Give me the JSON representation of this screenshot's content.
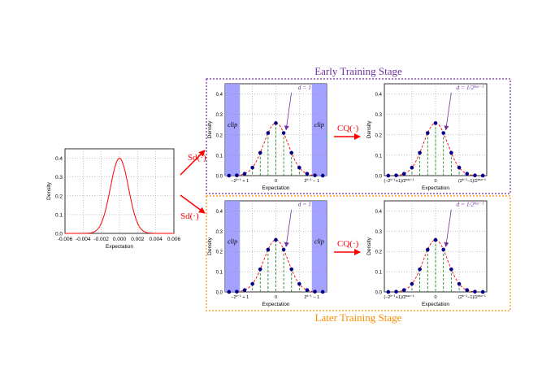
{
  "colors": {
    "early_frame": "#7030a0",
    "later_frame": "#ff8c00",
    "arrow": "#ff0000",
    "gaussian": "#ff0000",
    "clip_fill": "#9999ff",
    "dots": "#00008b",
    "dashes": "#228b22"
  },
  "stage_labels": {
    "early": "Early Training Stage",
    "later": "Later Training Stage"
  },
  "operators": {
    "sd": "Sd(·)",
    "cq": "CQ(·)"
  },
  "annotations": {
    "clip": "clip",
    "d_one": "d = 1",
    "d_frac": "d = 1/2",
    "d_frac_exp": "k_{sc}−1"
  },
  "small_plot": {
    "xlabel": "Expectation",
    "ylabel": "Density",
    "xticks": [
      "-0.006",
      "-0.004",
      "-0.002",
      "0.000",
      "0.002",
      "0.004",
      "0.006"
    ],
    "yticks": [
      "0.0",
      "0.1",
      "0.2",
      "0.3",
      "0.4"
    ]
  },
  "panels": {
    "xlabel": "Expectation",
    "ylabel": "Density",
    "yticks": [
      "0.0",
      "0.1",
      "0.2",
      "0.3",
      "0.4"
    ],
    "left_xticks": [
      "−2^{k−1} + 1",
      "0",
      "2^{k−1} − 1"
    ],
    "right_xticks": [
      "(−2^{k−1}+1)/2^{k_{sc}−1}",
      "0",
      "(2^{k−1}−1)/2^{k_{sc}−1}"
    ]
  },
  "chart_data": {
    "type": "line",
    "series": [
      {
        "x": [
          -0.006,
          -0.005,
          -0.004,
          -0.003,
          -0.002,
          -0.001,
          0,
          0.001,
          0.002,
          0.003,
          0.004,
          0.005,
          0.006
        ],
        "values": [
          0.0,
          0.0,
          0.0,
          0.004,
          0.054,
          0.242,
          0.399,
          0.242,
          0.054,
          0.004,
          0.0,
          0.0,
          0.0
        ]
      }
    ],
    "xlabel": "Expectation",
    "ylabel": "Density",
    "ylim": [
      0,
      0.45
    ],
    "xlim": [
      -0.006,
      0.006
    ]
  }
}
